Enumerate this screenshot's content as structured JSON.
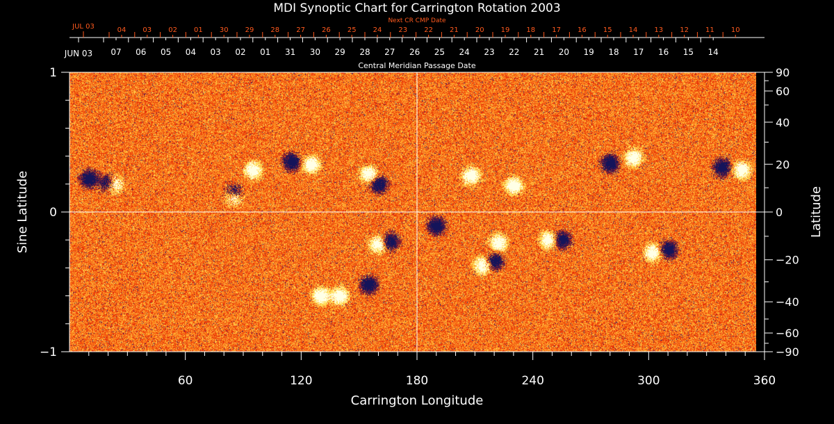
{
  "chart_data": {
    "type": "heatmap",
    "title": "MDI Synoptic Chart for Carrington Rotation 2003",
    "xlabel": "Carrington Longitude",
    "ylabel_left": "Sine Latitude",
    "ylabel_right": "Latitude",
    "xlim": [
      0,
      360
    ],
    "ylim": [
      -1,
      1
    ],
    "x_ticks": [
      60,
      120,
      180,
      240,
      300,
      360
    ],
    "y_ticks_left": [
      {
        "v": 1,
        "label": "1"
      },
      {
        "v": 0,
        "label": "0"
      },
      {
        "v": -1,
        "label": "−1"
      }
    ],
    "y_ticks_right": [
      {
        "lat": 90,
        "label": "90"
      },
      {
        "lat": 60,
        "label": "60"
      },
      {
        "lat": 40,
        "label": "40"
      },
      {
        "lat": 20,
        "label": "20"
      },
      {
        "lat": 0,
        "label": "0"
      },
      {
        "lat": -20,
        "label": "−20"
      },
      {
        "lat": -40,
        "label": "−40"
      },
      {
        "lat": -60,
        "label": "−60"
      },
      {
        "lat": -90,
        "label": "−90"
      }
    ],
    "top_axis_cmp": {
      "caption": "Central Meridian Passage Date",
      "start_label": "JUN 03",
      "labels": [
        "07",
        "06",
        "05",
        "04",
        "03",
        "02",
        "01",
        "31",
        "30",
        "29",
        "28",
        "27",
        "26",
        "25",
        "24",
        "23",
        "22",
        "21",
        "20",
        "19",
        "18",
        "17",
        "16",
        "15",
        "14"
      ]
    },
    "top_axis_next": {
      "caption": "Next CR CMP Date",
      "start_label": "JUL 03",
      "labels": [
        "04",
        "03",
        "02",
        "01",
        "30",
        "29",
        "28",
        "27",
        "26",
        "25",
        "24",
        "23",
        "22",
        "21",
        "20",
        "19",
        "18",
        "17",
        "16",
        "15",
        "14",
        "13",
        "12",
        "11",
        "10"
      ]
    },
    "features": [
      {
        "lon": 10,
        "sinlat": 0.24,
        "pol": -1
      },
      {
        "lon": 20,
        "sinlat": 0.21,
        "pol": -1
      },
      {
        "lon": 23,
        "sinlat": 0.2,
        "pol": 1
      },
      {
        "lon": 85,
        "sinlat": 0.14,
        "pol": -1
      },
      {
        "lon": 85,
        "sinlat": 0.11,
        "pol": 1
      },
      {
        "lon": 95,
        "sinlat": 0.3,
        "pol": 1
      },
      {
        "lon": 155,
        "sinlat": 0.27,
        "pol": 1
      },
      {
        "lon": 160,
        "sinlat": 0.2,
        "pol": -1
      },
      {
        "lon": 115,
        "sinlat": 0.36,
        "pol": -1
      },
      {
        "lon": 125,
        "sinlat": 0.34,
        "pol": 1
      },
      {
        "lon": 160,
        "sinlat": -0.23,
        "pol": 1
      },
      {
        "lon": 166,
        "sinlat": -0.21,
        "pol": -1
      },
      {
        "lon": 155,
        "sinlat": -0.52,
        "pol": -1
      },
      {
        "lon": 140,
        "sinlat": -0.6,
        "pol": 1
      },
      {
        "lon": 130,
        "sinlat": -0.6,
        "pol": 1
      },
      {
        "lon": 190,
        "sinlat": -0.1,
        "pol": -1
      },
      {
        "lon": 220,
        "sinlat": -0.35,
        "pol": -1
      },
      {
        "lon": 214,
        "sinlat": -0.38,
        "pol": 1
      },
      {
        "lon": 222,
        "sinlat": -0.22,
        "pol": 1
      },
      {
        "lon": 248,
        "sinlat": -0.2,
        "pol": 1
      },
      {
        "lon": 255,
        "sinlat": -0.2,
        "pol": -1
      },
      {
        "lon": 302,
        "sinlat": -0.29,
        "pol": 1
      },
      {
        "lon": 310,
        "sinlat": -0.27,
        "pol": -1
      },
      {
        "lon": 280,
        "sinlat": 0.35,
        "pol": -1
      },
      {
        "lon": 292,
        "sinlat": 0.39,
        "pol": 1
      },
      {
        "lon": 338,
        "sinlat": 0.32,
        "pol": -1
      },
      {
        "lon": 348,
        "sinlat": 0.3,
        "pol": 1
      },
      {
        "lon": 230,
        "sinlat": 0.19,
        "pol": 1
      },
      {
        "lon": 208,
        "sinlat": 0.26,
        "pol": 1
      }
    ],
    "colors": {
      "background": "#e8501a",
      "positive": "#ffffff",
      "negative": "#101060",
      "axis": "#ffffff",
      "next_axis": "#ff5a1e"
    }
  }
}
